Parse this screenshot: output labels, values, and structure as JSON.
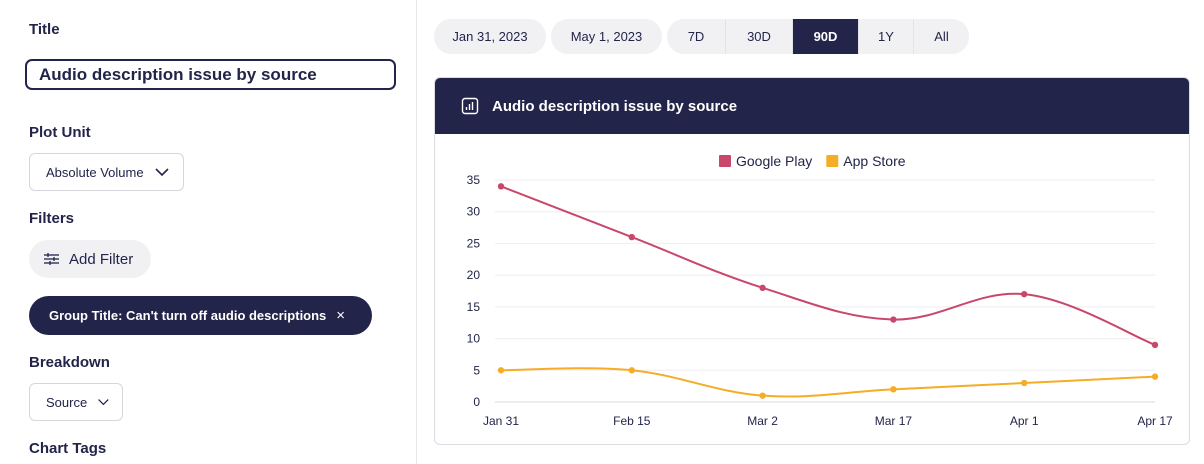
{
  "left": {
    "title_label": "Title",
    "title_value": "Audio description issue by source",
    "plot_unit_label": "Plot Unit",
    "plot_unit_value": "Absolute Volume",
    "filters_label": "Filters",
    "add_filter_label": "Add Filter",
    "filter_chip": "Group Title: Can't turn off audio descriptions",
    "filter_chip_close": "×",
    "breakdown_label": "Breakdown",
    "breakdown_value": "Source",
    "chart_tags_label": "Chart Tags"
  },
  "range": {
    "start_date": "Jan 31, 2023",
    "end_date": "May 1, 2023",
    "presets": [
      "7D",
      "30D",
      "90D",
      "1Y",
      "All"
    ],
    "active_preset": "90D"
  },
  "colors": {
    "navy": "#22244a",
    "google_play": "#c9476b",
    "app_store": "#f5ad25"
  },
  "chart_data": {
    "type": "line",
    "title": "Audio description issue by source",
    "categories": [
      "Jan 31",
      "Feb 15",
      "Mar 2",
      "Mar 17",
      "Apr 1",
      "Apr 17"
    ],
    "series": [
      {
        "name": "Google Play",
        "color": "#c9476b",
        "values": [
          34,
          26,
          18,
          13,
          17,
          9
        ]
      },
      {
        "name": "App Store",
        "color": "#f5ad25",
        "values": [
          5,
          5,
          1,
          2,
          3,
          4
        ]
      }
    ],
    "y_ticks": [
      0,
      5,
      10,
      15,
      20,
      25,
      30,
      35
    ],
    "ylim": [
      0,
      35
    ],
    "legend_position": "top-center",
    "xlabel": "",
    "ylabel": ""
  }
}
